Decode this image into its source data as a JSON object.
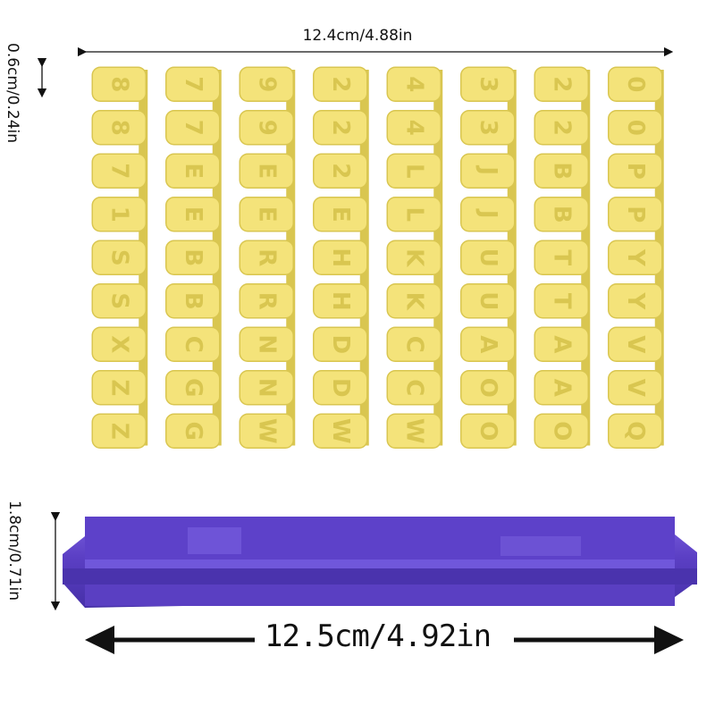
{
  "dimensions": {
    "letter_sheet_width": "12.4cm/4.88in",
    "letter_height": "0.6cm/0.24in",
    "holder_height": "1.8cm/0.71in",
    "holder_width": "12.5cm/4.92in"
  },
  "colors": {
    "letters": "#f4e37a",
    "letters_shadow": "#d9c650",
    "holder": "#6b4fd0",
    "holder_dark": "#4a33a8"
  },
  "stamp_grid": {
    "columns": [
      [
        "8",
        "8",
        "7",
        "1",
        "S",
        "S",
        "X",
        "Z",
        "Z"
      ],
      [
        "7",
        "7",
        "E",
        "E",
        "B",
        "B",
        "C",
        "G",
        "G"
      ],
      [
        "9",
        "9",
        "E",
        "E",
        "R",
        "R",
        "N",
        "N",
        "W"
      ],
      [
        "2",
        "2",
        "2",
        "E",
        "H",
        "H",
        "D",
        "D",
        "W"
      ],
      [
        "4",
        "4",
        "L",
        "L",
        "K",
        "K",
        "C",
        "C",
        "W"
      ],
      [
        "3",
        "3",
        "J",
        "J",
        "U",
        "U",
        "A",
        "O",
        "O"
      ],
      [
        "2",
        "2",
        "B",
        "B",
        "T",
        "T",
        "A",
        "A",
        "O"
      ],
      [
        "0",
        "0",
        "P",
        "P",
        "Y",
        "Y",
        "V",
        "V",
        "Q"
      ]
    ]
  }
}
